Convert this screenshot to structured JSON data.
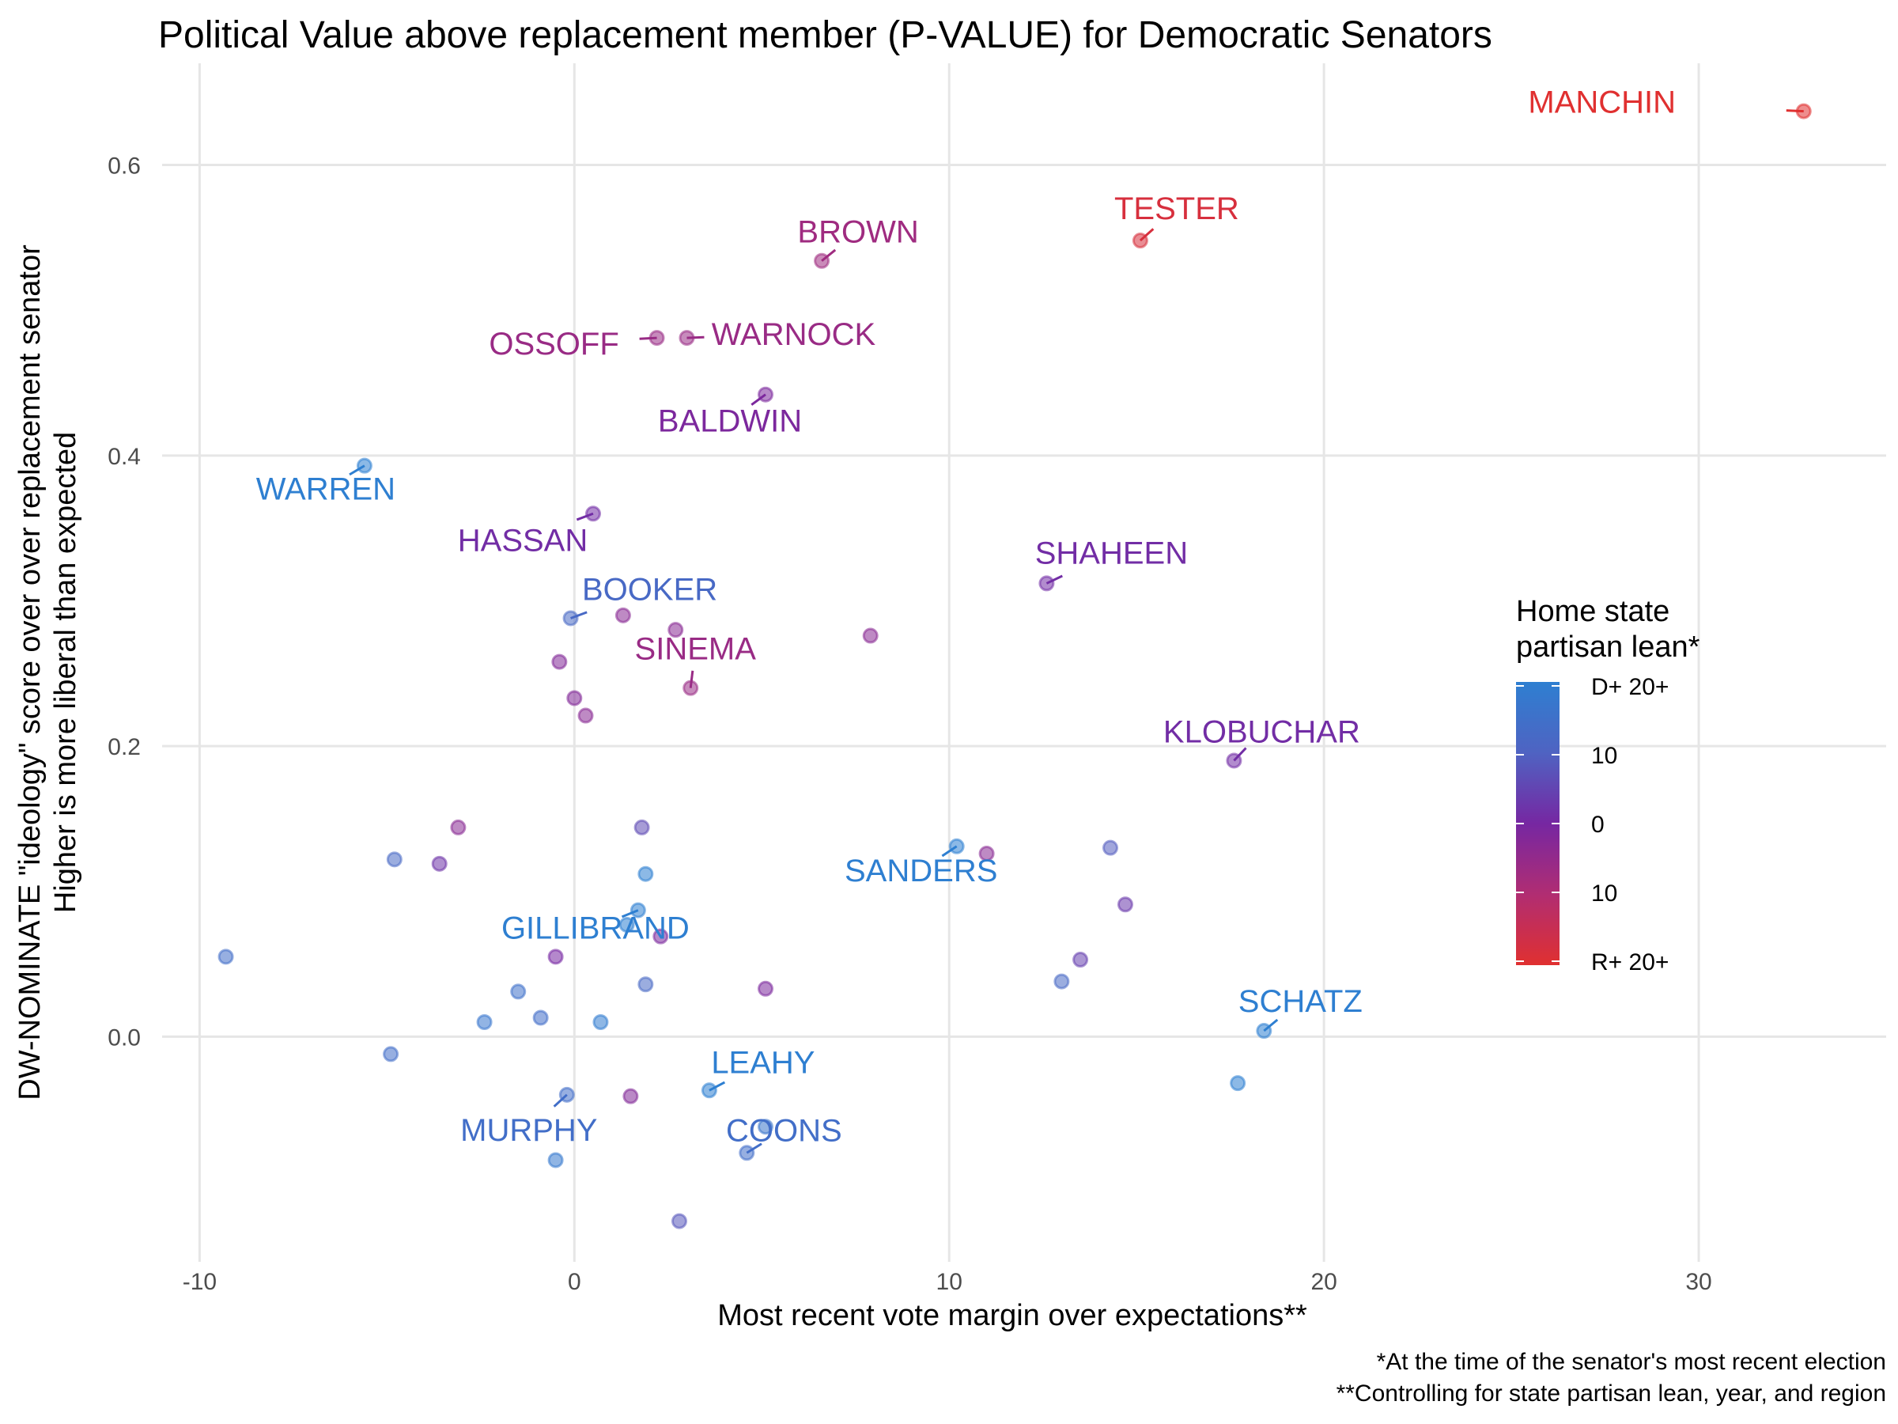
{
  "chart_data": {
    "type": "scatter",
    "title": "Political Value above replacement member (P-VALUE) for Democratic Senators",
    "xlabel": "Most recent vote margin over expectations**",
    "ylabel_lines": [
      "DW-NOMINATE \"ideology\" score over over replacement senator",
      "Higher is more liberal than expected"
    ],
    "xlim": [
      -11,
      35
    ],
    "ylim": [
      -0.155,
      0.67
    ],
    "x_ticks": [
      -10,
      0,
      10,
      20,
      30
    ],
    "x_tick_labels": [
      "-10",
      "0",
      "10",
      "20",
      "30"
    ],
    "y_ticks": [
      0.0,
      0.2,
      0.4,
      0.6
    ],
    "y_tick_labels": [
      "0.0",
      "0.2",
      "0.4",
      "0.6"
    ],
    "grid": true,
    "legend": {
      "title_lines": [
        "Home state",
        "partisan lean*"
      ],
      "placement": "right",
      "colors": [
        "#2e7fd1",
        "#4f63c2",
        "#7627a2",
        "#b12d72",
        "#e03030"
      ],
      "labels": [
        "D+ 20+",
        "10",
        "0",
        "10",
        "R+ 20+"
      ],
      "values": [
        20,
        10,
        0,
        -10,
        -20
      ]
    },
    "captions": [
      "*At the time of the senator's most recent election",
      "**Controlling for state partisan lean, year, and region"
    ],
    "points": [
      {
        "name": "MANCHIN",
        "x": 32.8,
        "y": 0.637,
        "lean": -22
      },
      {
        "name": "TESTER",
        "x": 15.1,
        "y": 0.548,
        "lean": -18
      },
      {
        "name": "BROWN",
        "x": 6.6,
        "y": 0.534,
        "lean": -7
      },
      {
        "name": "OSSOFF",
        "x": 2.2,
        "y": 0.481,
        "lean": -6
      },
      {
        "name": "WARNOCK",
        "x": 3.0,
        "y": 0.481,
        "lean": -6
      },
      {
        "name": "BALDWIN",
        "x": 5.1,
        "y": 0.442,
        "lean": -1
      },
      {
        "name": "WARREN",
        "x": -5.6,
        "y": 0.393,
        "lean": 22
      },
      {
        "name": "HASSAN",
        "x": 0.5,
        "y": 0.36,
        "lean": 1
      },
      {
        "name": "SHAHEEN",
        "x": 12.6,
        "y": 0.312,
        "lean": 1
      },
      {
        "name": "BOOKER",
        "x": -0.1,
        "y": 0.288,
        "lean": 12
      },
      {
        "name": "SINEMA",
        "x": 3.1,
        "y": 0.24,
        "lean": -6
      },
      {
        "name": "KLOBUCHAR",
        "x": 17.6,
        "y": 0.19,
        "lean": 1
      },
      {
        "name": "SANDERS",
        "x": 10.2,
        "y": 0.131,
        "lean": 22
      },
      {
        "name": "GILLIBRAND",
        "x": 1.7,
        "y": 0.087,
        "lean": 20
      },
      {
        "name": "SCHATZ",
        "x": 18.4,
        "y": 0.004,
        "lean": 25
      },
      {
        "name": "LEAHY",
        "x": 3.6,
        "y": -0.037,
        "lean": 24
      },
      {
        "name": "MURPHY",
        "x": -0.2,
        "y": -0.04,
        "lean": 14
      },
      {
        "name": "COONS",
        "x": 4.6,
        "y": -0.08,
        "lean": 14
      },
      {
        "name": "",
        "x": 1.3,
        "y": 0.29,
        "lean": -3
      },
      {
        "name": "",
        "x": 2.7,
        "y": 0.28,
        "lean": -3
      },
      {
        "name": "",
        "x": 7.9,
        "y": 0.276,
        "lean": -3
      },
      {
        "name": "",
        "x": -0.4,
        "y": 0.258,
        "lean": -2
      },
      {
        "name": "",
        "x": 0.0,
        "y": 0.233,
        "lean": -2
      },
      {
        "name": "",
        "x": 0.3,
        "y": 0.221,
        "lean": -3
      },
      {
        "name": "",
        "x": -3.1,
        "y": 0.144,
        "lean": -3
      },
      {
        "name": "",
        "x": 1.8,
        "y": 0.144,
        "lean": 6
      },
      {
        "name": "",
        "x": -4.8,
        "y": 0.122,
        "lean": 12
      },
      {
        "name": "",
        "x": -3.6,
        "y": 0.119,
        "lean": 2
      },
      {
        "name": "",
        "x": 1.9,
        "y": 0.112,
        "lean": 22
      },
      {
        "name": "",
        "x": 11.0,
        "y": 0.126,
        "lean": -3
      },
      {
        "name": "",
        "x": 14.3,
        "y": 0.13,
        "lean": 9
      },
      {
        "name": "",
        "x": 14.7,
        "y": 0.091,
        "lean": 3
      },
      {
        "name": "",
        "x": 1.4,
        "y": 0.077,
        "lean": 20
      },
      {
        "name": "",
        "x": 2.3,
        "y": 0.069,
        "lean": -1
      },
      {
        "name": "",
        "x": -9.3,
        "y": 0.055,
        "lean": 14
      },
      {
        "name": "",
        "x": -0.5,
        "y": 0.055,
        "lean": 0
      },
      {
        "name": "",
        "x": 13.5,
        "y": 0.053,
        "lean": 4
      },
      {
        "name": "",
        "x": 13.0,
        "y": 0.038,
        "lean": 12
      },
      {
        "name": "",
        "x": 1.9,
        "y": 0.036,
        "lean": 12
      },
      {
        "name": "",
        "x": 5.1,
        "y": 0.033,
        "lean": -1
      },
      {
        "name": "",
        "x": -1.5,
        "y": 0.031,
        "lean": 15
      },
      {
        "name": "",
        "x": -0.9,
        "y": 0.013,
        "lean": 14
      },
      {
        "name": "",
        "x": -2.4,
        "y": 0.01,
        "lean": 17
      },
      {
        "name": "",
        "x": 0.7,
        "y": 0.01,
        "lean": 19
      },
      {
        "name": "",
        "x": -4.9,
        "y": -0.012,
        "lean": 14
      },
      {
        "name": "",
        "x": 17.7,
        "y": -0.032,
        "lean": 22
      },
      {
        "name": "",
        "x": 1.5,
        "y": -0.041,
        "lean": -2
      },
      {
        "name": "",
        "x": -0.5,
        "y": -0.085,
        "lean": 18
      },
      {
        "name": "",
        "x": 2.8,
        "y": -0.127,
        "lean": 8
      },
      {
        "name": "",
        "x": 5.1,
        "y": -0.062,
        "lean": 16
      }
    ]
  }
}
